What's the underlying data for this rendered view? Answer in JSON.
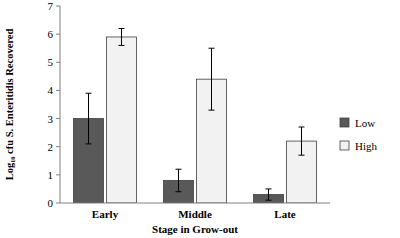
{
  "chart_data": {
    "type": "bar",
    "x_label": "Stage in Grow-out",
    "y_label": "Log₁₀ cfu S. Enteritidis Recovered",
    "categories": [
      "Early",
      "Middle",
      "Late"
    ],
    "series": [
      {
        "name": "Low",
        "color": "#595959",
        "values": [
          3.0,
          0.8,
          0.3
        ],
        "errors": [
          0.9,
          0.4,
          0.2
        ]
      },
      {
        "name": "High",
        "color": "#f2f2f2",
        "values": [
          5.9,
          4.4,
          2.2
        ],
        "errors": [
          0.3,
          1.1,
          0.5
        ]
      }
    ],
    "ylim": [
      0,
      7
    ],
    "yticks": [
      0,
      1,
      2,
      3,
      4,
      5,
      6,
      7
    ],
    "grid": false,
    "legend": "right"
  }
}
